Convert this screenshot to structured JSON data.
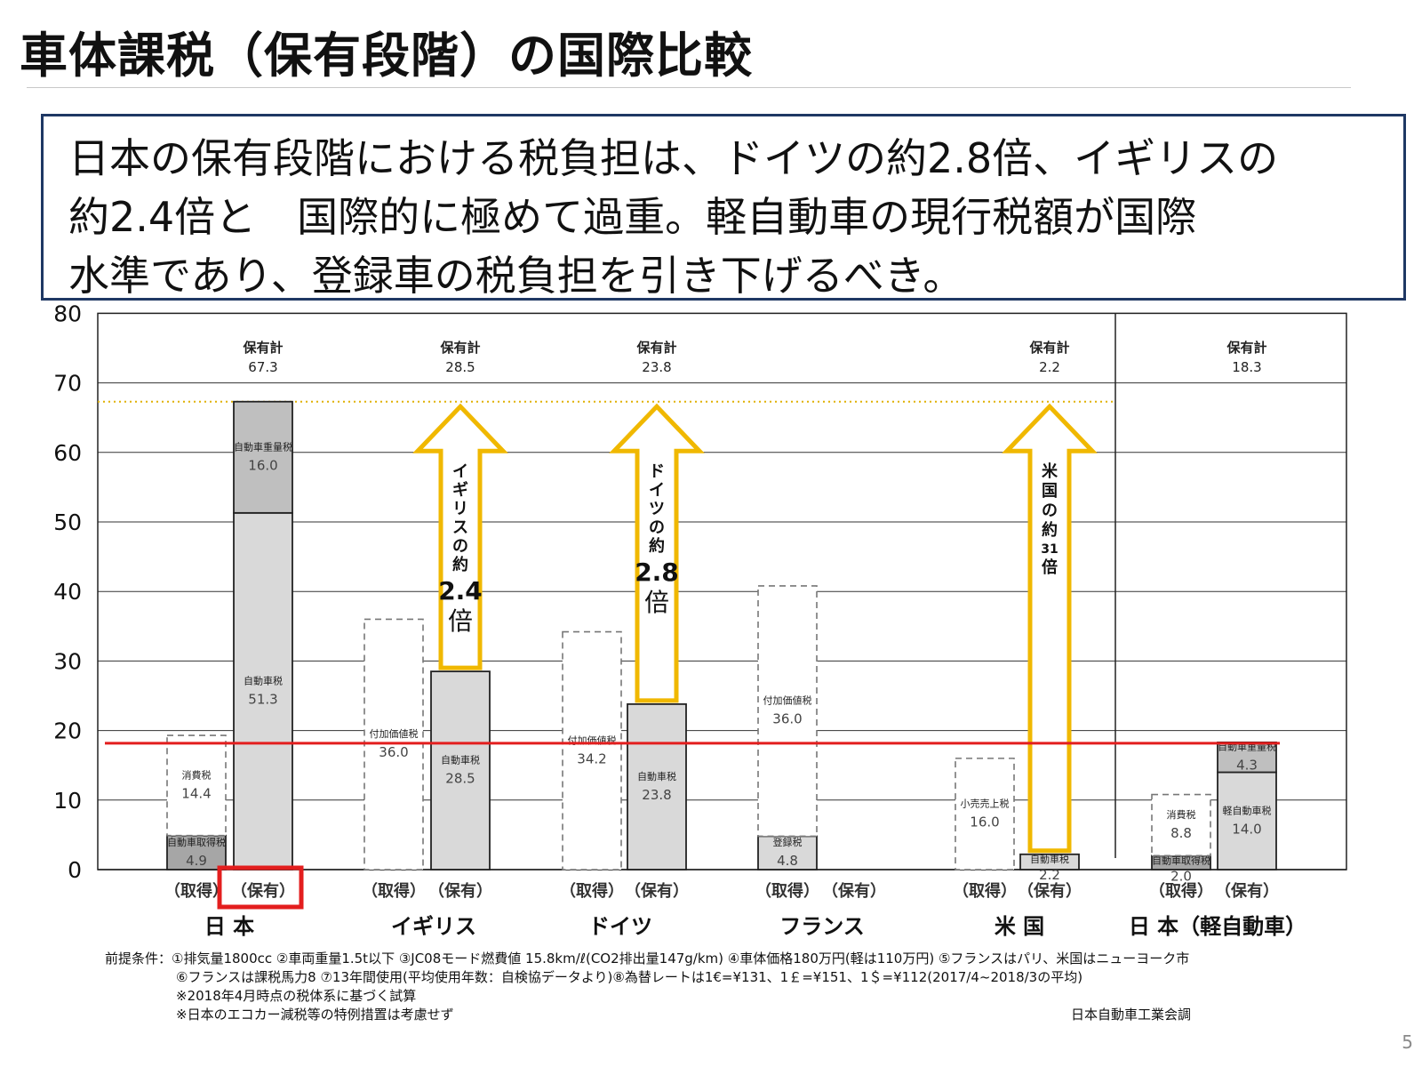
{
  "title": "車体課税（保有段階）の国際比較",
  "callout": {
    "line1": "日本の保有段階における税負担は、ドイツの約2.8倍、イギリスの",
    "line2": "約2.4倍と　国際的に極めて過重。軽自動車の現行税額が国際",
    "line3": "水準であり、登録車の税負担を引き下げるべき。"
  },
  "chart_data": {
    "type": "bar",
    "ylim": [
      0,
      80
    ],
    "yticks": [
      0,
      10,
      20,
      30,
      40,
      50,
      60,
      70,
      80
    ],
    "grid": true,
    "reference_line": 18.3,
    "dotted_line": 67.3,
    "groups": [
      {
        "name": "日 本",
        "total_label": "保有計",
        "total": "67.3",
        "highlight_hold": true,
        "bars": [
          {
            "label": "（取得）",
            "style": "solid",
            "segments": [
              {
                "name": "自動車取得税",
                "value": 4.9,
                "fill": "#a6a6a6"
              },
              {
                "name": "消費税",
                "value": 14.4,
                "fill": "none"
              }
            ]
          },
          {
            "label": "（保有）",
            "style": "solid",
            "segments": [
              {
                "name": "自動車税",
                "value": 51.3,
                "fill": "#d9d9d9"
              },
              {
                "name": "自動車重量税",
                "value": 16.0,
                "fill": "#bfbfbf"
              }
            ]
          }
        ]
      },
      {
        "name": "イギリス",
        "total_label": "保有計",
        "total": "28.5",
        "arrow": {
          "text": "イギリスの約",
          "mult": "2.4",
          "unit": "倍"
        },
        "bars": [
          {
            "label": "（取得）",
            "style": "dashed",
            "segments": [
              {
                "name": "付加価値税",
                "value": 36.0,
                "fill": "none"
              }
            ]
          },
          {
            "label": "（保有）",
            "style": "solid",
            "segments": [
              {
                "name": "自動車税",
                "value": 28.5,
                "fill": "#d9d9d9"
              }
            ]
          }
        ]
      },
      {
        "name": "ドイツ",
        "total_label": "保有計",
        "total": "23.8",
        "arrow": {
          "text": "ドイツの約",
          "mult": "2.8",
          "unit": "倍"
        },
        "bars": [
          {
            "label": "（取得）",
            "style": "dashed",
            "segments": [
              {
                "name": "付加価値税",
                "value": 34.2,
                "fill": "none"
              }
            ]
          },
          {
            "label": "（保有）",
            "style": "solid",
            "segments": [
              {
                "name": "自動車税",
                "value": 23.8,
                "fill": "#d9d9d9"
              }
            ]
          }
        ]
      },
      {
        "name": "フランス",
        "bars": [
          {
            "label": "（取得）",
            "style": "dashed",
            "segments": [
              {
                "name": "登録税",
                "value": 4.8,
                "fill": "#d9d9d9"
              },
              {
                "name": "付加価値税",
                "value": 36.0,
                "fill": "none"
              }
            ]
          },
          {
            "label": "（保有）",
            "style": "none",
            "segments": []
          }
        ]
      },
      {
        "name": "米 国",
        "total_label": "保有計",
        "total": "2.2",
        "arrow": {
          "text": "米国の約",
          "mult": "31",
          "unit": "倍"
        },
        "bars": [
          {
            "label": "（取得）",
            "style": "dashed",
            "segments": [
              {
                "name": "小売売上税",
                "value": 16.0,
                "fill": "none"
              }
            ]
          },
          {
            "label": "（保有）",
            "style": "solid",
            "segments": [
              {
                "name": "自動車税",
                "value": 2.2,
                "fill": "#d9d9d9"
              }
            ]
          }
        ]
      },
      {
        "name": "日 本（軽自動車）",
        "total_label": "保有計",
        "total": "18.3",
        "bars": [
          {
            "label": "（取得）",
            "style": "dashed",
            "segments": [
              {
                "name": "自動車取得税",
                "value": 2.0,
                "fill": "#a6a6a6"
              },
              {
                "name": "消費税",
                "value": 8.8,
                "fill": "none"
              }
            ]
          },
          {
            "label": "（保有）",
            "style": "solid",
            "segments": [
              {
                "name": "軽自動車税",
                "value": 14.0,
                "fill": "#d9d9d9"
              },
              {
                "name": "自動車重量税",
                "value": 4.3,
                "fill": "#bfbfbf"
              }
            ]
          }
        ]
      }
    ]
  },
  "footnotes": {
    "line1": "前提条件：①排気量1800cc ②車両重量1.5t以下 ③JC08モード燃費値 15.8km/ℓ(CO2排出量147g/km) ④車体価格180万円(軽は110万円) ⑤フランスはパリ、米国はニューヨーク市",
    "line2": "⑥フランスは課税馬力8 ⑦13年間使用(平均使用年数：自検協データより)⑧為替レートは1€=¥131、1￡=¥151、1＄=¥112(2017/4~2018/3の平均)",
    "line3": "※2018年4月時点の税体系に基づく試算",
    "line4": "※日本のエコカー減税等の特例措置は考慮せず",
    "source": "日本自動車工業会調"
  },
  "page_number": "5",
  "colors": {
    "callout_border": "#1f3864",
    "reference_line": "#e31e1e",
    "highlight_box": "#e31e1e",
    "arrow_stroke": "#f0b800",
    "dotted_line": "#e0b000"
  }
}
